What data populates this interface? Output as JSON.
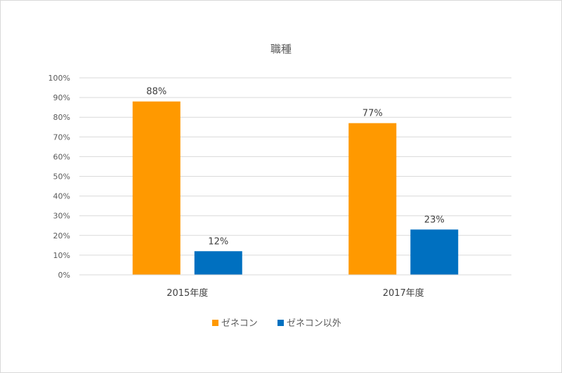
{
  "chart_data": {
    "type": "bar",
    "title": "職種",
    "categories": [
      "2015年度",
      "2017年度"
    ],
    "series": [
      {
        "name": "ゼネコン",
        "values": [
          88,
          77
        ],
        "color": "#ff9900"
      },
      {
        "name": "ゼネコン以外",
        "values": [
          12,
          23
        ],
        "color": "#0070c0"
      }
    ],
    "ylim": [
      0,
      100
    ],
    "yticks": [
      0,
      10,
      20,
      30,
      40,
      50,
      60,
      70,
      80,
      90,
      100
    ],
    "ytick_suffix": "%",
    "grid": true,
    "legend_position": "bottom",
    "data_labels": [
      "88%",
      "12%",
      "77%",
      "23%"
    ]
  }
}
